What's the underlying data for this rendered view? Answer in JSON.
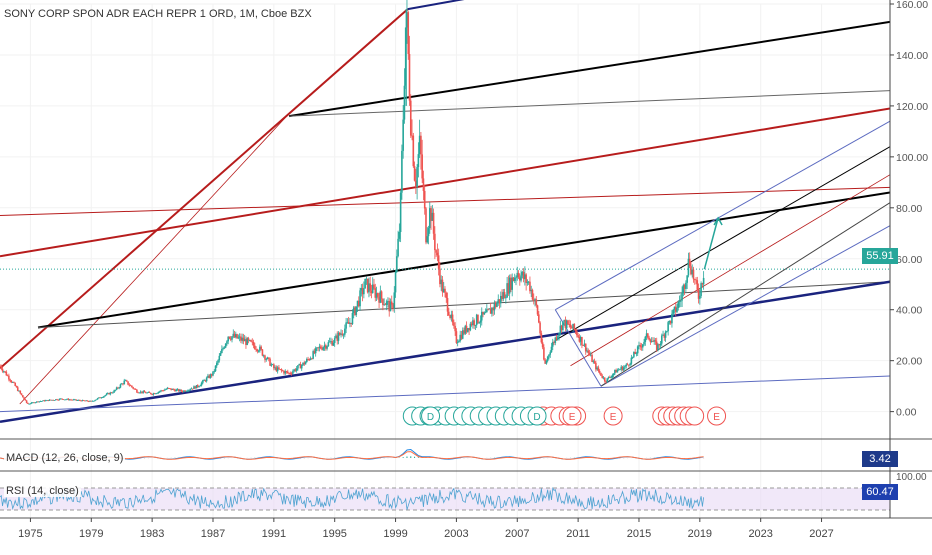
{
  "chart_data": {
    "type": "line",
    "title": "SONY CORP SPON ADR EACH REPR 1 ORD, 1M, Cboe BZX",
    "last_price_label": "55.91",
    "last_price": 55.91,
    "ylim": [
      -8,
      160
    ],
    "y_ticks": [
      "160.00",
      "140.00",
      "120.00",
      "100.00",
      "80.00",
      "60.00",
      "40.00",
      "20.00",
      "0.00"
    ],
    "y_tick_values": [
      160,
      140,
      120,
      100,
      80,
      60,
      40,
      20,
      0
    ],
    "xlim": [
      1973.0,
      2031.5
    ],
    "x_ticks": [
      "1975",
      "1979",
      "1983",
      "1987",
      "1991",
      "1995",
      "1999",
      "2003",
      "2007",
      "2011",
      "2015",
      "2019",
      "2023",
      "2027"
    ],
    "x_tick_values": [
      1975,
      1979,
      1983,
      1987,
      1991,
      1995,
      1999,
      2003,
      2007,
      2011,
      2015,
      2019,
      2023,
      2027
    ],
    "series": [
      {
        "x": [
          1973.0,
          1974.0,
          1974.8,
          1975.5,
          1977,
          1979,
          1980.5,
          1981.2,
          1982,
          1983,
          1984,
          1985,
          1986,
          1987,
          1988,
          1989,
          1990,
          1991,
          1992,
          1993,
          1994,
          1995,
          1996,
          1997,
          1998,
          1998.8,
          1999.3,
          1999.7,
          2000.0,
          2000.3,
          2000.6,
          2001.0,
          2001.3,
          2001.6,
          2002.0,
          2002.5,
          2003.0,
          2004.0,
          2005.0,
          2006.0,
          2007.0,
          2007.8,
          2008.3,
          2008.8,
          2009.2,
          2010.0,
          2010.8,
          2011.5,
          2012.2,
          2012.8,
          2013.5,
          2014.2,
          2015.0,
          2015.6,
          2016.2,
          2017.0,
          2017.8,
          2018.3,
          2018.9,
          2019.3
        ],
        "values": [
          18,
          10,
          3,
          4,
          5,
          4,
          8,
          12,
          8,
          7,
          9,
          8,
          10,
          15,
          30,
          28,
          25,
          17,
          15,
          19,
          25,
          28,
          35,
          50,
          45,
          40,
          75,
          158,
          115,
          90,
          105,
          70,
          80,
          65,
          50,
          40,
          28,
          35,
          38,
          45,
          55,
          50,
          40,
          18,
          25,
          35,
          32,
          25,
          17,
          12,
          16,
          18,
          25,
          30,
          25,
          35,
          45,
          60,
          45,
          55.91
        ]
      }
    ],
    "annotations": [
      {
        "text": "D",
        "x": 2001.3
      },
      {
        "text": "D",
        "x": 2008.3
      },
      {
        "text": "E",
        "x": 2010.6
      },
      {
        "text": "E",
        "x": 2013.3
      },
      {
        "text": "E",
        "x": 2020.1
      }
    ],
    "indicators": [
      {
        "name": "MACD (12, 26, close, 9)",
        "value_label": "3.42"
      },
      {
        "name": "RSI (14, close)",
        "value_label": "60.47",
        "scale_top_label": "100.00"
      }
    ],
    "colors": {
      "up": "#26a69a",
      "down": "#ef5350",
      "price_tag": "#26a69a",
      "axis_line": "#444444",
      "grid": "#f2f2f2",
      "dark_red": "#b71c1c",
      "black": "#000000",
      "navy": "#1a237e",
      "channel": "#5c6bc0",
      "macd_value_bg": "#1e3a8a",
      "rsi_value_bg": "#1e40af",
      "rsi_band": "#e8d9f5",
      "rsi_line": "#4fa3d1"
    }
  }
}
